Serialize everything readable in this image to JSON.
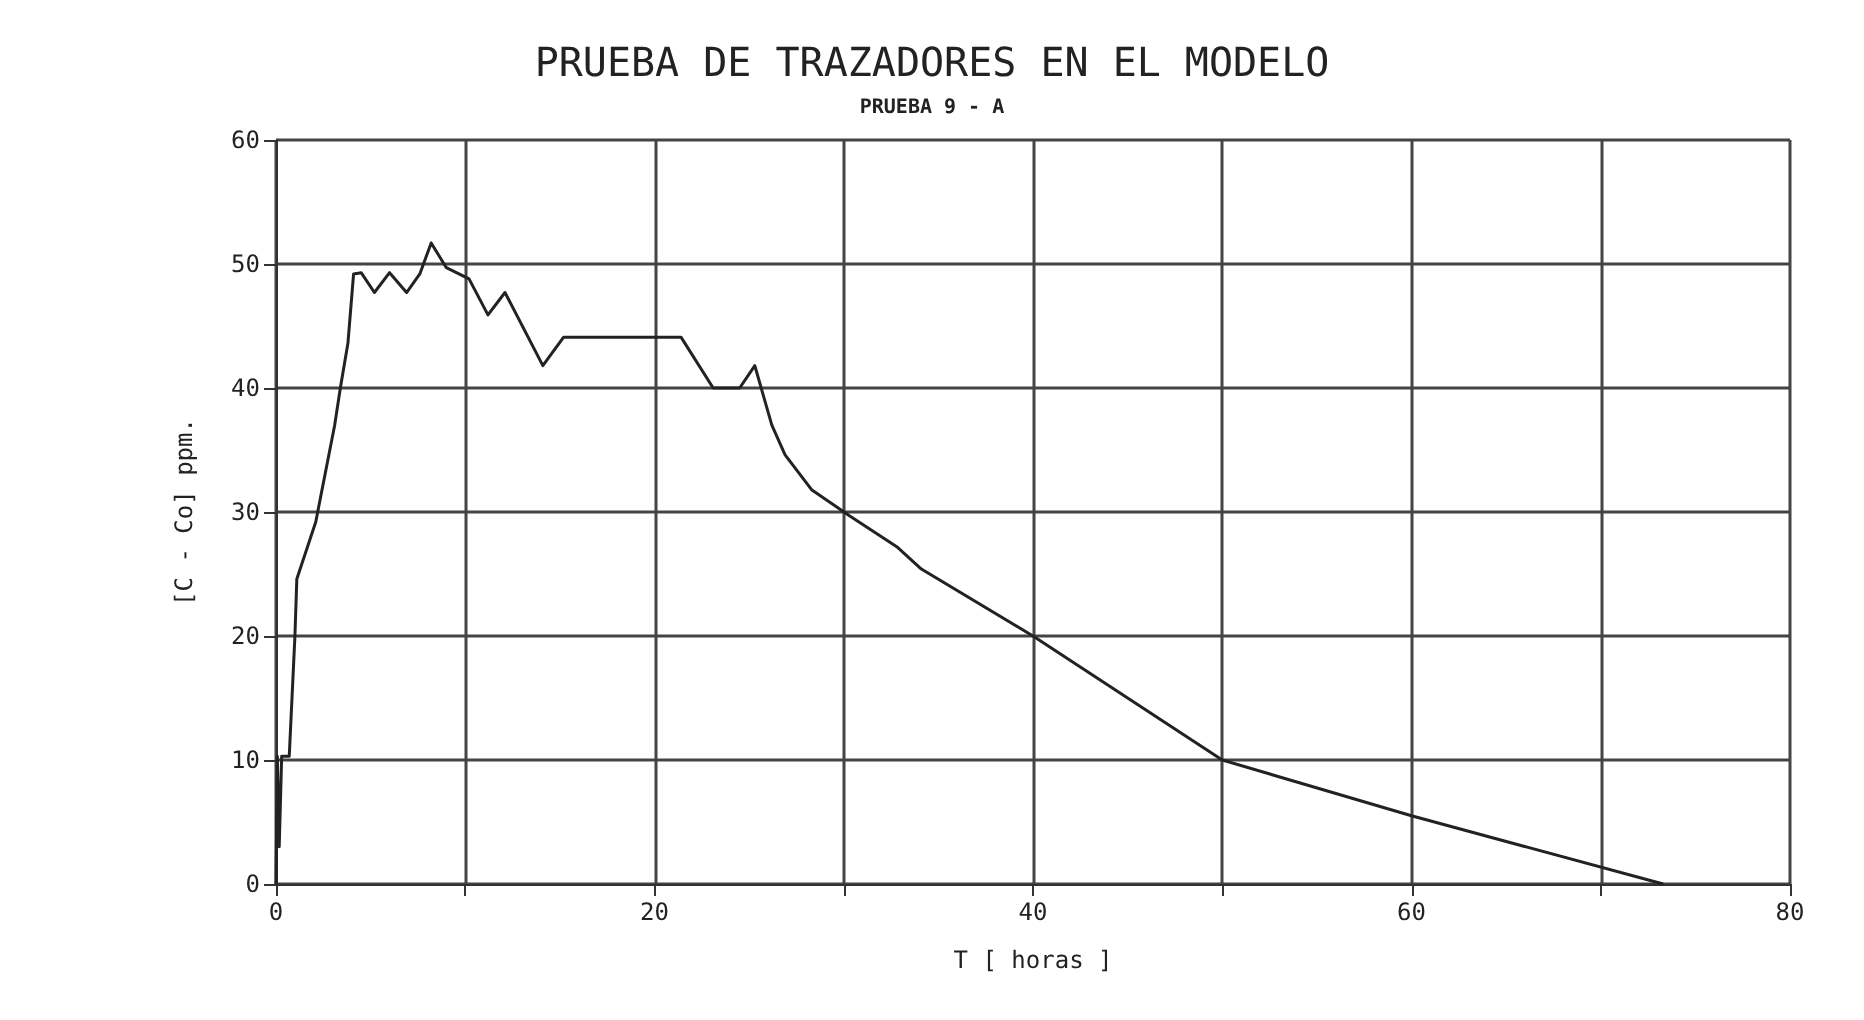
{
  "chart_data": {
    "type": "line",
    "title": "PRUEBA DE TRAZADORES EN EL MODELO",
    "subtitle": "PRUEBA 9 - A",
    "xlabel": "T [ horas ]",
    "ylabel": "[C - Co] ppm.",
    "x": [
      0,
      0.07,
      0.17,
      0.3,
      0.7,
      1,
      1.1,
      2.1,
      3.1,
      3.4,
      3.8,
      4.1,
      4.5,
      5.2,
      6,
      6.9,
      7.6,
      8.2,
      9,
      10.2,
      11.2,
      12.1,
      14.1,
      15.2,
      21.4,
      23.1,
      24.5,
      25.3,
      26.2,
      26.9,
      28.3,
      30.3,
      32.8,
      34.1,
      40,
      45,
      50,
      60,
      73.3
    ],
    "series": [
      {
        "color": "#222222",
        "values": [
          0,
          10.3,
          3,
          10.3,
          10.3,
          20,
          24.6,
          29.2,
          37,
          40,
          43.6,
          49.2,
          49.3,
          47.7,
          49.3,
          47.7,
          49.2,
          51.7,
          49.7,
          48.8,
          45.9,
          47.7,
          41.8,
          44.1,
          44.1,
          40,
          40,
          41.8,
          37,
          34.6,
          31.8,
          29.7,
          27.2,
          25.4,
          20,
          15,
          10,
          5.5,
          0
        ]
      }
    ],
    "xlim": [
      0,
      80
    ],
    "xticks": [
      0,
      {
        "value": 10,
        "label": null
      },
      20,
      {
        "value": 30,
        "label": null
      },
      40,
      {
        "value": 50,
        "label": null
      },
      60,
      {
        "value": 70,
        "label": null
      },
      80
    ],
    "ylim": [
      0,
      60
    ],
    "yticks": [
      0,
      10,
      20,
      30,
      40,
      50,
      60
    ],
    "grid": true,
    "marker": "none",
    "line_style": "solid"
  }
}
